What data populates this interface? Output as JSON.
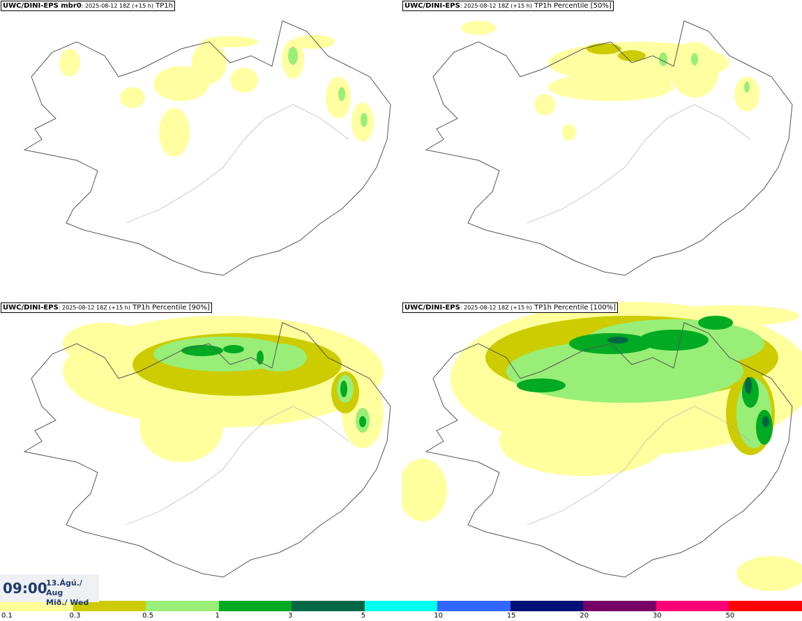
{
  "panels": [
    {
      "model": "UWC/DINI-EPS mbr0",
      "run": ": 2025-08-12 18Z (+15 h)",
      "field": " TP1h"
    },
    {
      "model": "UWC/DINI-EPS",
      "run": ": 2025-08-12 18Z (+15 h)",
      "field": " TP1h Percentile [50%]"
    },
    {
      "model": "UWC/DINI-EPS",
      "run": ": 2025-08-12 18Z (+15 h)",
      "field": " TP1h Percentile [90%]"
    },
    {
      "model": "UWC/DINI-EPS",
      "run": ": 2025-08-12 18Z (+15 h)",
      "field": " TP1h Percentile [100%]"
    }
  ],
  "valid_time": {
    "time": "09:00",
    "date": "13.Ágú./ Aug",
    "weekday": "Mið./ Wed"
  },
  "legend": {
    "labels": [
      "0.1",
      "0.3",
      "0.5",
      "1",
      "3",
      "5",
      "10",
      "15",
      "20",
      "30",
      "50"
    ],
    "colors": [
      "#ffff99",
      "#cccc00",
      "#99ee77",
      "#00aa22",
      "#006644",
      "#00ffee",
      "#3366ff",
      "#001177",
      "#770066",
      "#ff0077",
      "#ff0000"
    ]
  }
}
